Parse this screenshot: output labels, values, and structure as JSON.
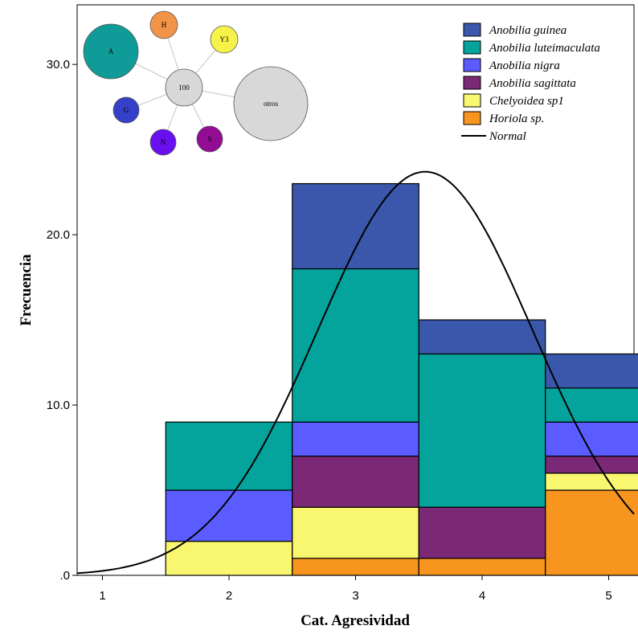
{
  "chart_data": {
    "type": "bar",
    "stacked": true,
    "xlabel": "Cat. Agresividad",
    "ylabel": "Frecuencia",
    "xlim": [
      0.8,
      5.2
    ],
    "ylim": [
      0,
      33.5
    ],
    "x_ticks": [
      "1",
      "2",
      "3",
      "4",
      "5"
    ],
    "y_ticks": [
      ".0",
      "10.0",
      "20.0",
      "30.0"
    ],
    "categories": [
      1,
      2,
      3,
      4,
      5
    ],
    "series": [
      {
        "name": "Horiola sp.",
        "color": "#f7951e",
        "values": [
          0,
          0,
          1,
          1,
          5
        ]
      },
      {
        "name": "Chelyoidea sp1",
        "color": "#f9f770",
        "values": [
          0,
          2,
          3,
          0,
          1
        ]
      },
      {
        "name": "Anobilia sagittata",
        "color": "#7b2876",
        "values": [
          0,
          0,
          3,
          3,
          1
        ]
      },
      {
        "name": "Anobilia nigra",
        "color": "#5a5cff",
        "values": [
          0,
          3,
          2,
          0,
          2
        ]
      },
      {
        "name": "Anobilia luteimaculata",
        "color": "#04a39c",
        "values": [
          0,
          4,
          9,
          9,
          2
        ]
      },
      {
        "name": "Anobilia guinea",
        "color": "#3a57ab",
        "values": [
          0,
          0,
          5,
          2,
          2
        ]
      }
    ],
    "legend": {
      "placement": "top-right",
      "order": [
        "Anobilia guinea",
        "Anobilia luteimaculata",
        "Anobilia nigra",
        "Anobilia sagittata",
        "Chelyoidea sp1",
        "Horiola sp."
      ],
      "normal_label": "Normal"
    },
    "normal_curve": {
      "mean": 3.55,
      "sd": 0.85,
      "peak": 23.7
    },
    "grid": false,
    "inset_network": {
      "center": {
        "label": "100",
        "color": "#d8d8d8"
      },
      "nodes": [
        {
          "label": "A",
          "color": "#0f9b97"
        },
        {
          "label": "H",
          "color": "#f29448"
        },
        {
          "label": "Y3",
          "color": "#f7f24a"
        },
        {
          "label": "otros",
          "color": "#d8d8d8"
        },
        {
          "label": "S",
          "color": "#920d93"
        },
        {
          "label": "N",
          "color": "#6a0ff0"
        },
        {
          "label": "G",
          "color": "#3440c8"
        }
      ]
    }
  }
}
